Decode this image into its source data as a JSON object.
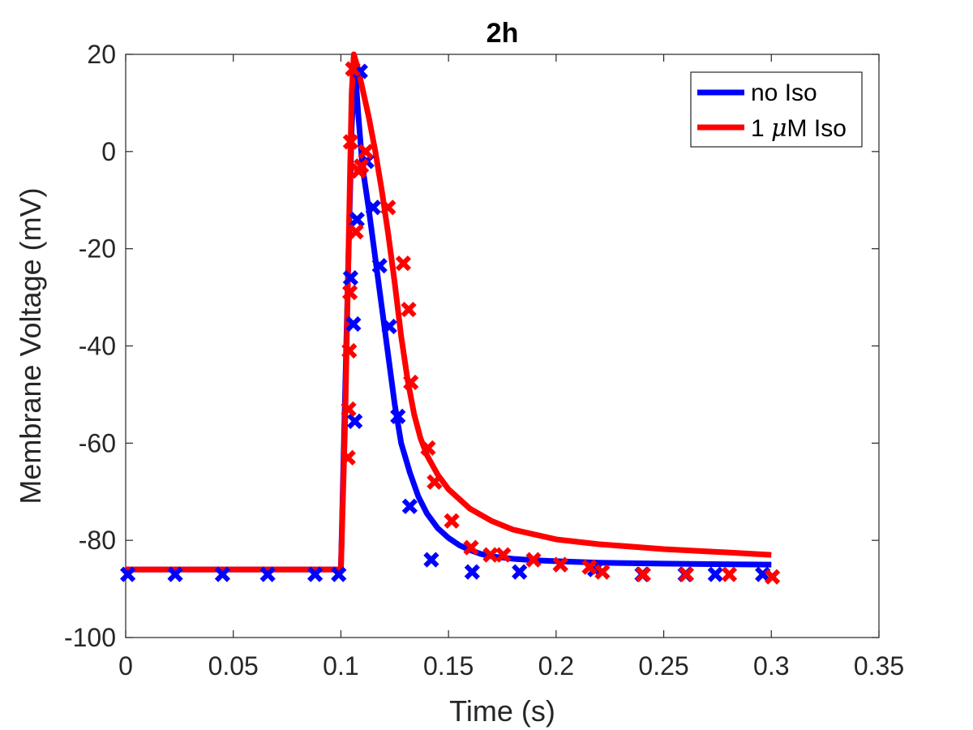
{
  "chart_data": {
    "type": "line",
    "title": "2h",
    "xlabel": "Time (s)",
    "ylabel": "Membrane Voltage (mV)",
    "xlim": [
      0,
      0.35
    ],
    "ylim": [
      -100,
      20
    ],
    "xticks": [
      0,
      0.05,
      0.1,
      0.15,
      0.2,
      0.25,
      0.3,
      0.35
    ],
    "xtick_labels": [
      "0",
      "0.05",
      "0.1",
      "0.15",
      "0.2",
      "0.25",
      "0.3",
      "0.35"
    ],
    "yticks": [
      -100,
      -80,
      -60,
      -40,
      -20,
      0,
      20
    ],
    "ytick_labels": [
      "-100",
      "-80",
      "-60",
      "-40",
      "-20",
      "0",
      "20"
    ],
    "grid": false,
    "legend_position": "top-right",
    "legend": [
      {
        "label_pre": "no Iso",
        "mu": "",
        "label_post": "",
        "color": "#0000ff"
      },
      {
        "label_pre": "1 ",
        "mu": "μ",
        "label_post": "M Iso",
        "color": "#ff0000"
      }
    ],
    "series": [
      {
        "name": "no Iso",
        "color": "#0000ff",
        "line": {
          "x": [
            0,
            0.1,
            0.1025,
            0.105,
            0.1065,
            0.108,
            0.11,
            0.113,
            0.116,
            0.119,
            0.122,
            0.125,
            0.128,
            0.132,
            0.136,
            0.14,
            0.145,
            0.15,
            0.155,
            0.16,
            0.165,
            0.17,
            0.18,
            0.19,
            0.2,
            0.22,
            0.25,
            0.3
          ],
          "y": [
            -86,
            -86,
            -40,
            5,
            18,
            8,
            -3,
            -12,
            -22,
            -32,
            -42,
            -52,
            -60,
            -66,
            -71,
            -74.5,
            -77.5,
            -79.5,
            -81,
            -82,
            -82.8,
            -83.3,
            -83.8,
            -84.1,
            -84.3,
            -84.6,
            -84.8,
            -85
          ]
        },
        "markers": {
          "x": [
            0.001,
            0.023,
            0.045,
            0.066,
            0.088,
            0.099,
            0.1045,
            0.1058,
            0.1065,
            0.1075,
            0.109,
            0.112,
            0.115,
            0.118,
            0.1225,
            0.1265,
            0.132,
            0.142,
            0.161,
            0.183,
            0.202,
            0.218,
            0.24,
            0.26,
            0.274,
            0.296
          ],
          "y": [
            -87,
            -87,
            -87,
            -87,
            -87,
            -87,
            -26,
            -35.5,
            -55.5,
            -14,
            16.5,
            -2,
            -11.5,
            -23.5,
            -36,
            -54.5,
            -73,
            -84,
            -86.5,
            -86.5,
            -85,
            -86,
            -87,
            -87,
            -87,
            -87
          ]
        }
      },
      {
        "name": "1 μM Iso",
        "color": "#ff0000",
        "line": {
          "x": [
            0,
            0.1,
            0.102,
            0.104,
            0.105,
            0.106,
            0.108,
            0.11,
            0.113,
            0.116,
            0.119,
            0.122,
            0.125,
            0.128,
            0.131,
            0.134,
            0.137,
            0.14,
            0.145,
            0.15,
            0.16,
            0.17,
            0.18,
            0.2,
            0.22,
            0.25,
            0.28,
            0.3
          ],
          "y": [
            -86,
            -86,
            -55,
            -10,
            12,
            20,
            17,
            13,
            7,
            0,
            -8,
            -17,
            -27,
            -38,
            -47,
            -54,
            -59,
            -62.5,
            -66.5,
            -69.5,
            -73.5,
            -76,
            -77.8,
            -79.8,
            -80.8,
            -81.8,
            -82.5,
            -83
          ]
        },
        "markers": {
          "x": [
            0.1033,
            0.1036,
            0.1039,
            0.1042,
            0.1045,
            0.1055,
            0.107,
            0.1083,
            0.1095,
            0.1115,
            0.122,
            0.129,
            0.1315,
            0.1325,
            0.1405,
            0.1435,
            0.1515,
            0.1605,
            0.1695,
            0.1755,
            0.1895,
            0.202,
            0.2155,
            0.2215,
            0.2405,
            0.2605,
            0.2805,
            0.3005
          ],
          "y": [
            -63,
            -53,
            -41,
            -29,
            2,
            17,
            -16.5,
            -4,
            -3,
            0,
            -11.5,
            -23,
            -32.5,
            -47.5,
            -61,
            -68,
            -76,
            -81.5,
            -83,
            -83,
            -84,
            -85,
            -85.5,
            -86.5,
            -87,
            -87,
            -87,
            -87.5
          ]
        }
      }
    ]
  }
}
